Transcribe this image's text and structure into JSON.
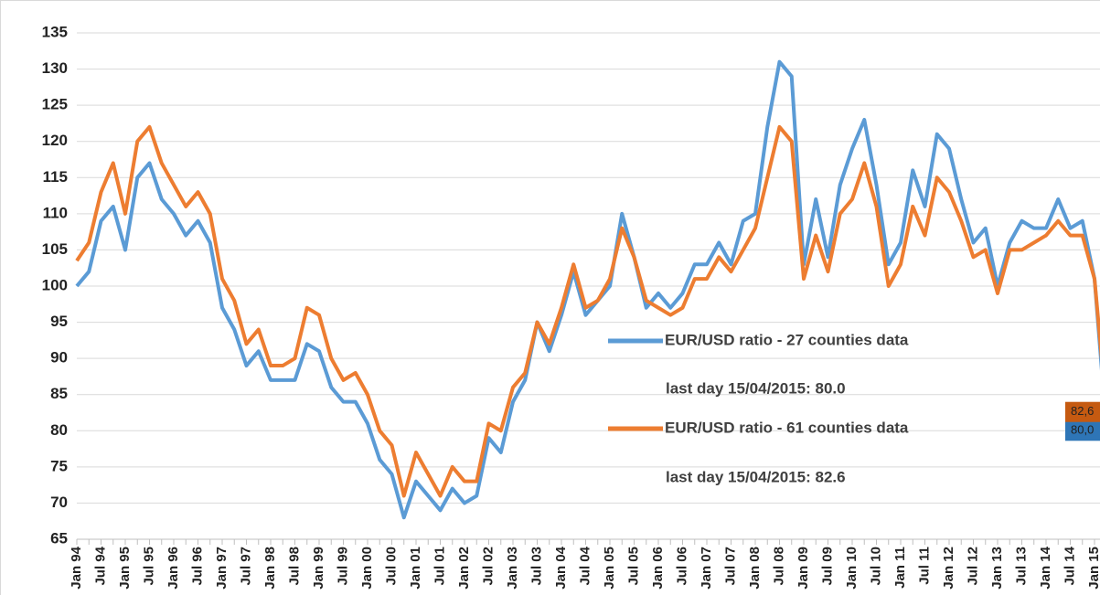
{
  "chart_data": {
    "type": "line",
    "categories": [
      "Jan 94",
      null,
      "Jul 94",
      null,
      "Jan 95",
      null,
      "Jul 95",
      null,
      "Jan 96",
      null,
      "Jul 96",
      null,
      "Jan 97",
      null,
      "Jul 97",
      null,
      "Jan 98",
      null,
      "Jul 98",
      null,
      "Jan 99",
      null,
      "Jul 99",
      null,
      "Jan 00",
      null,
      "Jul 00",
      null,
      "Jan 01",
      null,
      "Jul 01",
      null,
      "Jan 02",
      null,
      "Jul 02",
      null,
      "Jan 03",
      null,
      "Jul 03",
      null,
      "Jan 04",
      null,
      "Jul 04",
      null,
      "Jan 05",
      null,
      "Jul 05",
      null,
      "Jan 06",
      null,
      "Jul 06",
      null,
      "Jan 07",
      null,
      "Jul 07",
      null,
      "Jan 08",
      null,
      "Jul 08",
      null,
      "Jan 09",
      null,
      "Jul 09",
      null,
      "Jan 10",
      null,
      "Jul 10",
      null,
      "Jan 11",
      null,
      "Jul 11",
      null,
      "Jan 12",
      null,
      "Jul 12",
      null,
      "Jan 13",
      null,
      "Jul 13",
      null,
      "Jan 14",
      null,
      "Jul 14",
      null,
      "Jan 15",
      null
    ],
    "series": [
      {
        "name": "EUR/USD ratio - 27 counties data",
        "color": "#5b9bd5",
        "label_color": "#2e75b6",
        "values": [
          100,
          102,
          109,
          111,
          105,
          115,
          117,
          112,
          110,
          107,
          109,
          106,
          97,
          94,
          89,
          91,
          87,
          87,
          87,
          92,
          91,
          86,
          84,
          84,
          81,
          76,
          74,
          68,
          73,
          71,
          69,
          72,
          70,
          71,
          79,
          77,
          84,
          87,
          95,
          91,
          96,
          102,
          96,
          98,
          100,
          110,
          104,
          97,
          99,
          97,
          99,
          103,
          103,
          106,
          103,
          109,
          110,
          122,
          131,
          129,
          103,
          112,
          104,
          114,
          119,
          123,
          114,
          103,
          106,
          116,
          111,
          121,
          119,
          112,
          106,
          108,
          100,
          106,
          109,
          108,
          108,
          112,
          108,
          109,
          101,
          80
        ],
        "value_labels": [
          null,
          null,
          null,
          null,
          null,
          null,
          null,
          null,
          null,
          null,
          null,
          null,
          null,
          null,
          null,
          null,
          null,
          null,
          null,
          null,
          null,
          null,
          null,
          null,
          null,
          null,
          null,
          null,
          null,
          null,
          null,
          null,
          null,
          null,
          null,
          null,
          null,
          null,
          null,
          null,
          null,
          null,
          null,
          null,
          null,
          null,
          null,
          null,
          null,
          null,
          null,
          null,
          null,
          null,
          null,
          null,
          null,
          null,
          null,
          null,
          null,
          null,
          null,
          null,
          null,
          null,
          null,
          null,
          null,
          null,
          null,
          null,
          null,
          null,
          null,
          null,
          null,
          null,
          null,
          null,
          null,
          null,
          null,
          null,
          null,
          "80,0"
        ]
      },
      {
        "name": "EUR/USD ratio - 61 counties data",
        "color": "#ed7d31",
        "label_color": "#c55a11",
        "values": [
          103.5,
          106,
          113,
          117,
          110,
          120,
          122,
          117,
          114,
          111,
          113,
          110,
          101,
          98,
          92,
          94,
          89,
          89,
          90,
          97,
          96,
          90,
          87,
          88,
          85,
          80,
          78,
          71,
          77,
          74,
          71,
          75,
          73,
          73,
          81,
          80,
          86,
          88,
          95,
          92,
          97,
          103,
          97,
          98,
          101,
          108,
          104,
          98,
          97,
          96,
          97,
          101,
          101,
          104,
          102,
          105,
          108,
          115,
          122,
          120,
          101,
          107,
          102,
          110,
          112,
          117,
          111,
          100,
          103,
          111,
          107,
          115,
          113,
          109,
          104,
          105,
          99,
          105,
          105,
          106,
          107,
          109,
          107,
          107,
          101,
          82.6
        ],
        "value_labels": [
          null,
          null,
          null,
          null,
          null,
          null,
          null,
          null,
          null,
          null,
          null,
          null,
          null,
          null,
          null,
          null,
          null,
          null,
          null,
          null,
          null,
          null,
          null,
          null,
          null,
          null,
          null,
          null,
          null,
          null,
          null,
          null,
          null,
          null,
          null,
          null,
          null,
          null,
          null,
          null,
          null,
          null,
          null,
          null,
          null,
          null,
          null,
          null,
          null,
          null,
          null,
          null,
          null,
          null,
          null,
          null,
          null,
          null,
          null,
          null,
          null,
          null,
          null,
          null,
          null,
          null,
          null,
          null,
          null,
          null,
          null,
          null,
          null,
          null,
          null,
          null,
          null,
          null,
          null,
          null,
          null,
          null,
          null,
          null,
          null,
          "82,6"
        ]
      }
    ],
    "annotations": [
      "last day 15/04/2015: 80.0",
      "last day 15/04/2015: 82.6"
    ],
    "ylim": [
      65,
      135
    ],
    "yticks": [
      65,
      70,
      75,
      80,
      85,
      90,
      95,
      100,
      105,
      110,
      115,
      120,
      125,
      130,
      135
    ],
    "grid": true
  }
}
